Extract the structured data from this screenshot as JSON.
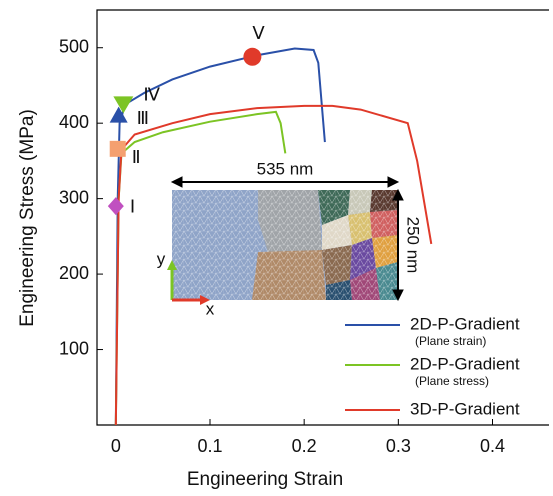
{
  "chart_data": {
    "type": "line",
    "x_label": "Engineering Strain",
    "y_label": "Engineering Stress (MPa)",
    "xlim": [
      -0.02,
      0.46
    ],
    "ylim": [
      0,
      550
    ],
    "xticks": [
      0,
      0.1,
      0.2,
      0.3,
      0.4
    ],
    "yticks": [
      100,
      200,
      300,
      400,
      500
    ],
    "grid": false,
    "legend": "lower right",
    "series": [
      {
        "name": "2D-P-Gradient",
        "subname": "(Plane strain)",
        "color": "#2a50a8",
        "x": [
          0,
          0.002,
          0.004,
          0.01,
          0.03,
          0.06,
          0.1,
          0.15,
          0.19,
          0.21,
          0.215,
          0.222
        ],
        "values": [
          0,
          300,
          400,
          425,
          440,
          458,
          475,
          490,
          499,
          497,
          480,
          375
        ]
      },
      {
        "name": "2D-P-Gradient",
        "subname": "(Plane stress)",
        "color": "#7cc424",
        "x": [
          0,
          0.003,
          0.006,
          0.02,
          0.05,
          0.1,
          0.15,
          0.17,
          0.175,
          0.18
        ],
        "values": [
          0,
          300,
          360,
          375,
          388,
          402,
          412,
          415,
          400,
          360
        ]
      },
      {
        "name": "3D-P-Gradient",
        "color": "#e03a2a",
        "x": [
          0,
          0.003,
          0.006,
          0.02,
          0.06,
          0.1,
          0.15,
          0.2,
          0.23,
          0.26,
          0.31,
          0.32,
          0.335
        ],
        "values": [
          0,
          300,
          365,
          385,
          400,
          412,
          420,
          423,
          423,
          418,
          400,
          350,
          240
        ]
      }
    ],
    "markers": [
      {
        "label": "Ⅰ",
        "x": 0.0,
        "y": 290,
        "shape": "diamond",
        "color": "#c050c0"
      },
      {
        "label": "Ⅱ",
        "x": 0.002,
        "y": 366,
        "shape": "square",
        "color": "#f4a070"
      },
      {
        "label": "Ⅲ",
        "x": 0.003,
        "y": 410,
        "shape": "triangle-up",
        "color": "#2a50a8"
      },
      {
        "label": "Ⅳ",
        "x": 0.008,
        "y": 425,
        "shape": "triangle-down",
        "color": "#7cc424"
      },
      {
        "label": "Ⅴ",
        "x": 0.145,
        "y": 488,
        "shape": "circle",
        "color": "#e03a2a"
      }
    ],
    "inset": {
      "width_label": "535 nm",
      "height_label": "250 nm",
      "x_axis": "x",
      "y_axis": "y"
    }
  }
}
